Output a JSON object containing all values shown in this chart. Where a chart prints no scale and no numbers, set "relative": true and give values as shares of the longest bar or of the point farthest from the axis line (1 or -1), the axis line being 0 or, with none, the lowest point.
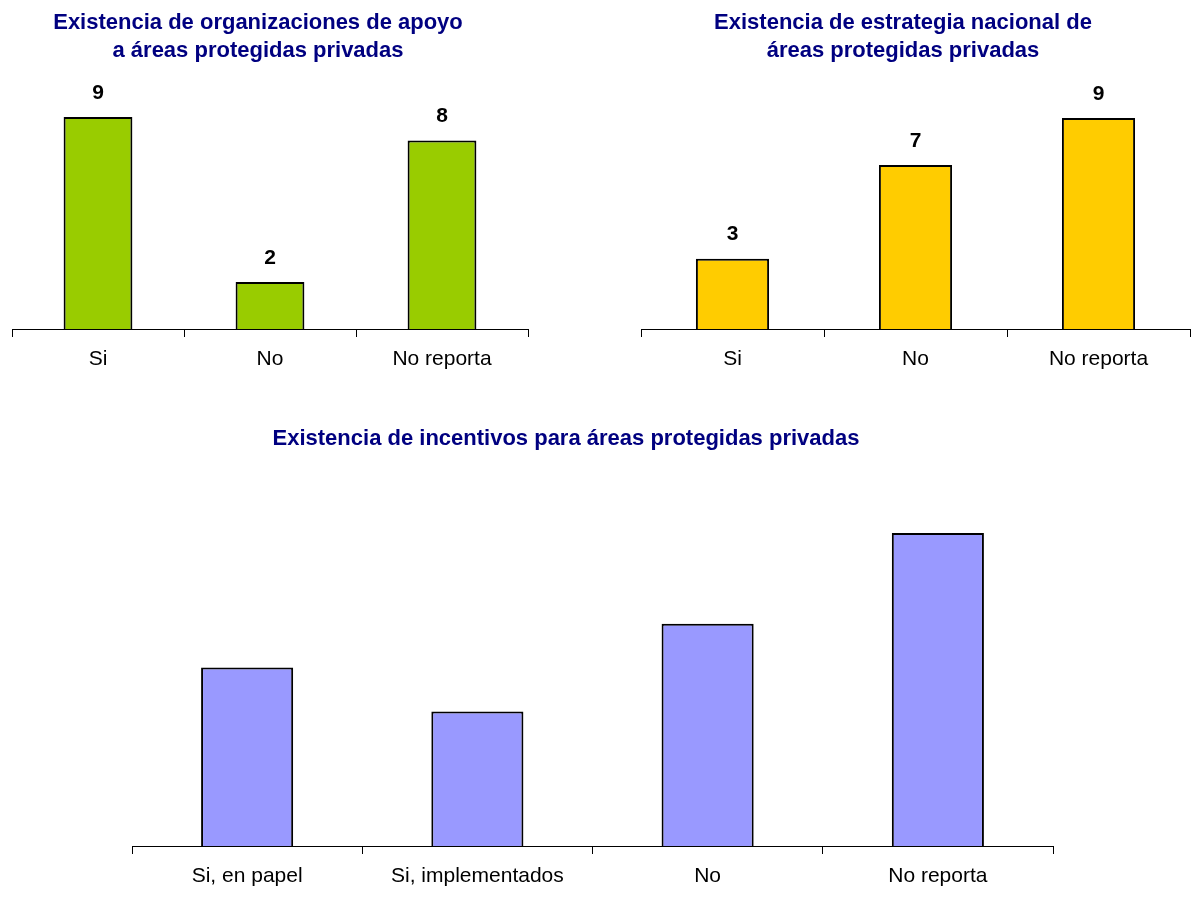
{
  "chart_data": [
    {
      "type": "bar",
      "title": "Existencia de organizaciones de apoyo\na áreas protegidas privadas",
      "categories": [
        "Si",
        "No",
        "No reporta"
      ],
      "values": [
        9,
        2,
        8
      ],
      "color": "#99cc00",
      "data_labels": true
    },
    {
      "type": "bar",
      "title": "Existencia de estrategia nacional de\náreas protegidas privadas",
      "categories": [
        "Si",
        "No",
        "No reporta"
      ],
      "values": [
        3,
        7,
        9
      ],
      "color": "#ffcc00",
      "data_labels": true
    },
    {
      "type": "bar",
      "title": "Existencia de incentivos para áreas protegidas privadas",
      "categories": [
        "Si, en papel",
        "Si, implementados",
        "No",
        "No reporta"
      ],
      "values": [
        0.57,
        0.43,
        0.71,
        1
      ],
      "color": "#9999ff",
      "relative": true
    }
  ]
}
